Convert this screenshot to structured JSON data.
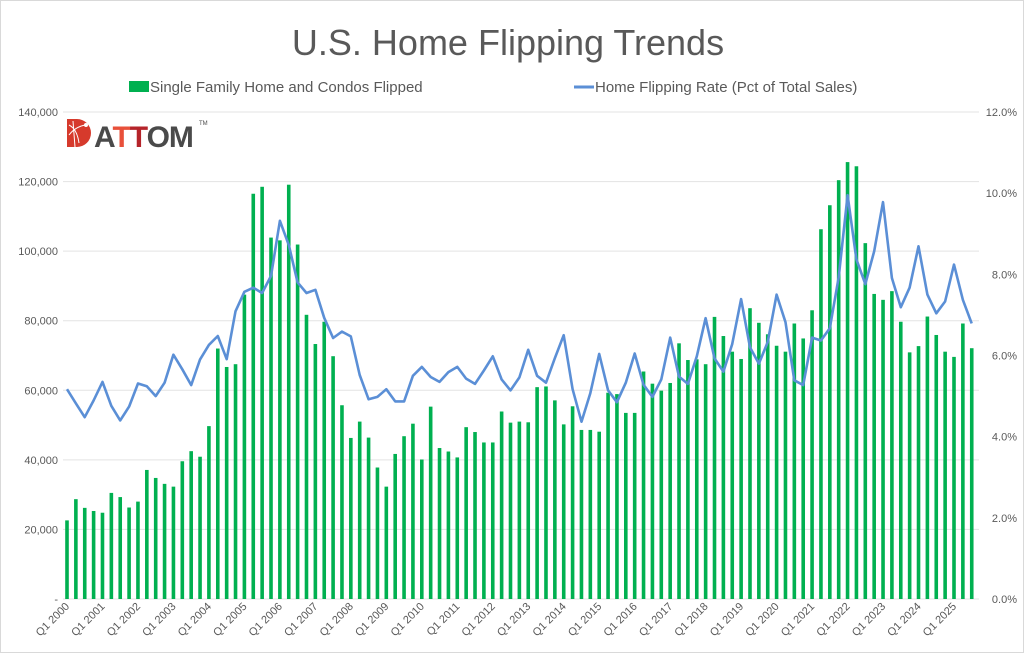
{
  "chart_data": {
    "type": "bar+line",
    "title": "U.S. Home Flipping Trends",
    "logo_text": "ATTOM",
    "legend_position": "top",
    "grid": true,
    "colors": {
      "bars": "#00b050",
      "line": "#5b8fd6",
      "grid": "#e3e3e3",
      "text": "#595959",
      "logo_red": "#d63a2c"
    },
    "x_tick_labels": [
      "Q1 2000",
      "Q1 2001",
      "Q1 2002",
      "Q1 2003",
      "Q1 2004",
      "Q1 2005",
      "Q1 2006",
      "Q1 2007",
      "Q1 2008",
      "Q1 2009",
      "Q1 2010",
      "Q1 2011",
      "Q1 2012",
      "Q1 2013",
      "Q1 2014",
      "Q1 2015",
      "Q1 2016",
      "Q1 2017",
      "Q1 2018",
      "Q1 2019",
      "Q1 2020",
      "Q1 2021",
      "Q1 2022",
      "Q1 2023",
      "Q1 2024",
      "Q1 2025"
    ],
    "x_range": [
      "Q1 2000",
      "Q3 2025"
    ],
    "y_left": {
      "ylim": [
        0,
        140000
      ],
      "tick_labels": [
        "-",
        "20,000",
        "40,000",
        "60,000",
        "80,000",
        "100,000",
        "120,000",
        "140,000"
      ]
    },
    "y_right": {
      "ylim": [
        0,
        12
      ],
      "tick_labels": [
        "0.0%",
        "2.0%",
        "4.0%",
        "6.0%",
        "8.0%",
        "10.0%",
        "12.0%"
      ]
    },
    "series": [
      {
        "name": "Single Family Home and Condos Flipped",
        "type": "bar",
        "axis": "left",
        "values": [
          22600,
          28700,
          26200,
          25300,
          24800,
          30500,
          29300,
          26300,
          28000,
          37100,
          34800,
          33100,
          32300,
          39600,
          42500,
          40900,
          49700,
          72000,
          66700,
          67500,
          87500,
          116500,
          118500,
          103900,
          103100,
          119100,
          101900,
          81700,
          73300,
          79700,
          69800,
          55700,
          46300,
          51000,
          46400,
          37800,
          32300,
          41700,
          46800,
          50400,
          40100,
          55300,
          43400,
          42400,
          40700,
          49400,
          48000,
          45000,
          45000,
          53900,
          50700,
          51000,
          50800,
          60900,
          61100,
          57100,
          50200,
          55400,
          48600,
          48600,
          48100,
          59300,
          58900,
          53500,
          53500,
          65400,
          61900,
          59900,
          62100,
          73500,
          68700,
          68900,
          67500,
          81100,
          75600,
          71100,
          69000,
          83600,
          79400,
          76100,
          72800,
          71100,
          79200,
          74900,
          83000,
          106300,
          113200,
          120400,
          125600,
          124400,
          102300,
          87700,
          86000,
          88500,
          79700,
          70900,
          72700,
          81200,
          75900,
          71100,
          69600,
          79200,
          72100
        ]
      },
      {
        "name": "Home Flipping Rate (Pct of Total Sales)",
        "type": "line",
        "axis": "right",
        "values": [
          5.17,
          4.82,
          4.48,
          4.89,
          5.35,
          4.76,
          4.4,
          4.74,
          5.31,
          5.24,
          5.0,
          5.33,
          6.02,
          5.66,
          5.27,
          5.9,
          6.26,
          6.48,
          5.91,
          7.09,
          7.57,
          7.67,
          7.54,
          7.96,
          9.32,
          8.72,
          7.8,
          7.54,
          7.62,
          6.93,
          6.43,
          6.59,
          6.47,
          5.52,
          4.92,
          4.98,
          5.17,
          4.87,
          4.87,
          5.5,
          5.72,
          5.47,
          5.35,
          5.59,
          5.72,
          5.43,
          5.3,
          5.63,
          5.98,
          5.41,
          5.14,
          5.46,
          6.14,
          5.5,
          5.33,
          5.93,
          6.5,
          5.17,
          4.37,
          5.07,
          6.04,
          5.14,
          4.85,
          5.33,
          6.05,
          5.28,
          4.98,
          5.41,
          6.44,
          5.48,
          5.3,
          5.98,
          6.92,
          5.93,
          5.6,
          6.28,
          7.39,
          6.2,
          5.8,
          6.33,
          7.5,
          6.82,
          5.39,
          5.27,
          6.44,
          6.37,
          6.67,
          7.93,
          9.95,
          8.37,
          7.76,
          8.57,
          9.78,
          7.91,
          7.19,
          7.67,
          8.69,
          7.5,
          7.04,
          7.33,
          8.24,
          7.37,
          6.79
        ]
      }
    ]
  }
}
